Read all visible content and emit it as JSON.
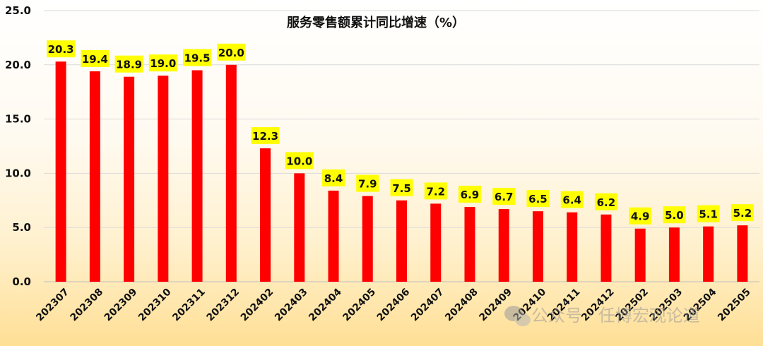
{
  "chart_data": {
    "type": "bar",
    "title": "服务零售额累计同比增速（%）",
    "categories": [
      "202307",
      "202308",
      "202309",
      "202310",
      "202311",
      "202312",
      "202402",
      "202403",
      "202404",
      "202405",
      "202406",
      "202407",
      "202408",
      "202409",
      "202410",
      "202411",
      "202412",
      "202502",
      "202503",
      "202504",
      "202505"
    ],
    "values": [
      20.3,
      19.4,
      18.9,
      19.0,
      19.5,
      20.0,
      12.3,
      10.0,
      8.4,
      7.9,
      7.5,
      7.2,
      6.9,
      6.7,
      6.5,
      6.4,
      6.2,
      4.9,
      5.0,
      5.1,
      5.2
    ],
    "data_labels": [
      "20.3",
      "19.4",
      "18.9",
      "19.0",
      "19.5",
      "20.0",
      "12.3",
      "10.0",
      "8.4",
      "7.9",
      "7.5",
      "7.2",
      "6.9",
      "6.7",
      "6.5",
      "6.4",
      "6.2",
      "4.9",
      "5.0",
      "5.1",
      "5.2"
    ],
    "ylim": [
      0,
      25
    ],
    "yticks": [
      0,
      5,
      10,
      15,
      20,
      25
    ],
    "ytick_labels": [
      "0.0",
      "5.0",
      "10.0",
      "15.0",
      "20.0",
      "25.0"
    ],
    "grid": true,
    "colors": {
      "bar": "#ff0000",
      "label_bg": "#ffff00",
      "grid": "#d9d9d9"
    }
  },
  "watermark": {
    "text": "公众号 · 任博宏观论道",
    "icon": "wechat-icon"
  }
}
